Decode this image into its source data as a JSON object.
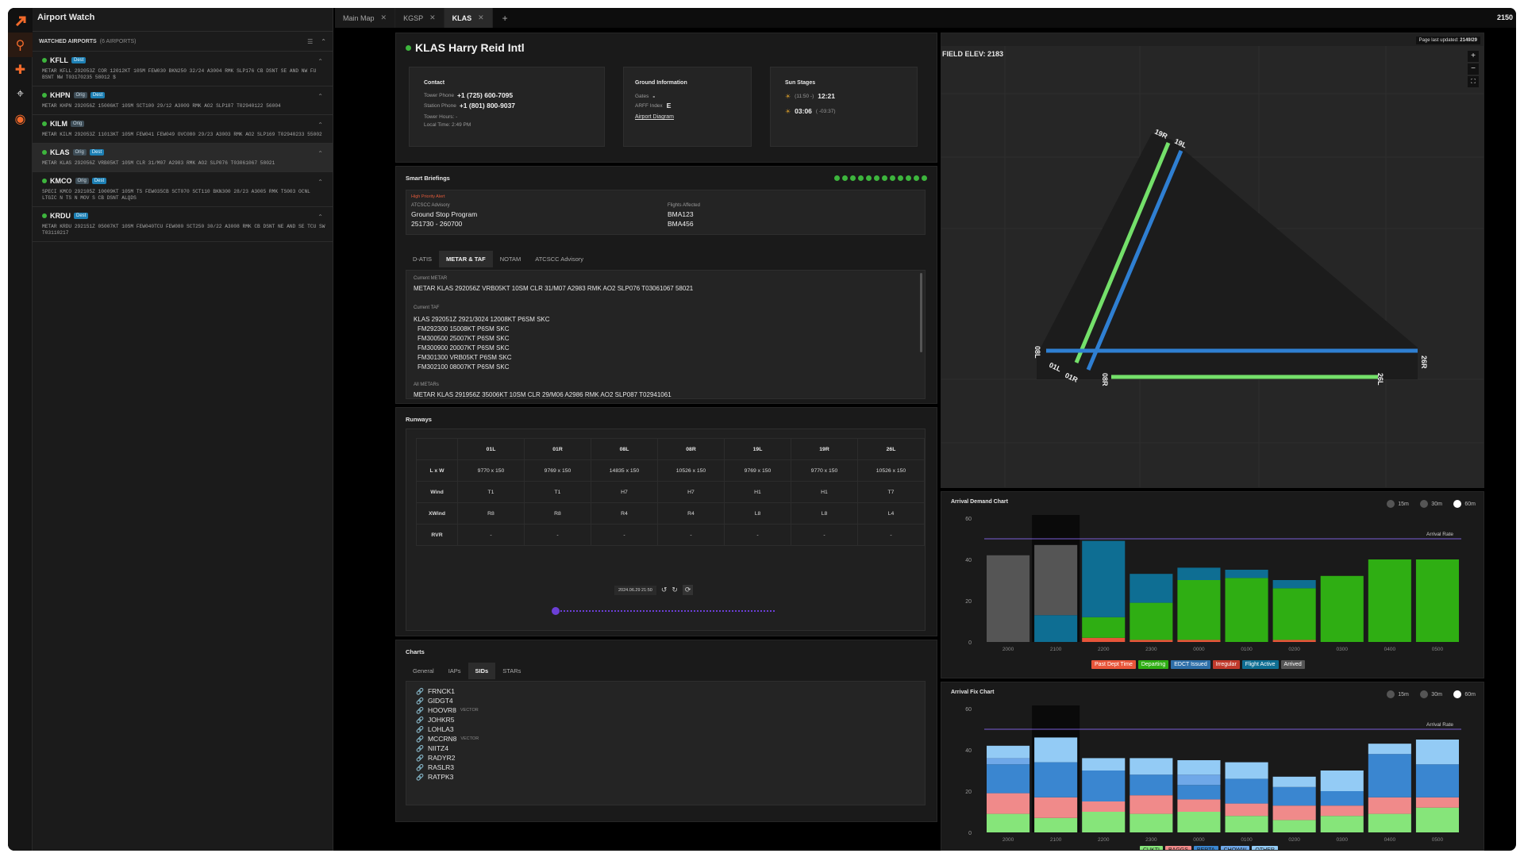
{
  "app": {
    "title": "Airport Watch",
    "clock": "2150"
  },
  "sidebar": {
    "header": "WATCHED AIRPORTS",
    "count": "(6 AIRPORTS)",
    "airports": [
      {
        "code": "KFLL",
        "tags": [
          "Dest"
        ],
        "metar": "METAR KFLL 292053Z COR 12012KT 10SM FEW030 BKN250 32/24 A3004 RMK SLP176 CB DSNT SE AND NW FU BSNT NW T03170235 58012 $"
      },
      {
        "code": "KHPN",
        "tags": [
          "Orig",
          "Dest"
        ],
        "metar": "METAR KHPN 292056Z 15006KT 10SM SCT100 29/12 A3009 RMK AO2 SLP187 T02940122 56004"
      },
      {
        "code": "KILM",
        "tags": [
          "Orig"
        ],
        "metar": "METAR KILM 292053Z 11013KT 10SM FEW041 FEW049 OVC080 29/23 A3003 RMK AO2 SLP169 T02940233 55002"
      },
      {
        "code": "KLAS",
        "tags": [
          "Orig",
          "Dest"
        ],
        "metar": "METAR KLAS 292056Z VRB05KT 10SM CLR 31/M07 A2983 RMK AO2 SLP076 T03061067 58021"
      },
      {
        "code": "KMCO",
        "tags": [
          "Orig",
          "Dest"
        ],
        "metar": "SPECI KMCO 292105Z 10009KT 10SM TS FEW035CB SCT070 SCT110 BKN300 28/23 A3005 RMK TS003 OCNL LTGIC N TS N MOV S CB DSNT ALQDS"
      },
      {
        "code": "KRDU",
        "tags": [
          "Dest"
        ],
        "metar": "METAR KRDU 292151Z 05007KT 10SM FEW040TCU FEW080 SCT250 30/22 A3008 RMK CB DSNT NE AND SE TCU SW T03110217"
      }
    ]
  },
  "tabs": [
    "Main Map",
    "KGSP",
    "KLAS"
  ],
  "airport": {
    "name": "KLAS Harry Reid Intl",
    "contact": {
      "title": "Contact",
      "tower_label": "Tower Phone",
      "tower": "+1 (725) 600-7095",
      "station_label": "Station Phone",
      "station": "+1 (801) 800-9037",
      "hours": "Tower Hours: -",
      "local": "Local Time: 2:49 PM"
    },
    "ground": {
      "title": "Ground Information",
      "gates_label": "Gates",
      "gates": "-",
      "arff_label": "ARFF Index",
      "arff": "E",
      "diagram": "Airport Diagram"
    },
    "sun": {
      "title": "Sun Stages",
      "rise_rel": "(11:50 -)",
      "rise": "12:21",
      "set": "03:06",
      "set_rel": "( -03:37)"
    }
  },
  "briefings": {
    "title": "Smart Briefings",
    "alert": "High Priority Alert",
    "advisory_label": "ATCSCC Advisory",
    "advisory": "Ground Stop Program",
    "advisory_time": "251730 - 260700",
    "flights_label": "Flights Affected",
    "flights": [
      "BMA123",
      "BMA456"
    ],
    "tabs": [
      "D-ATIS",
      "METAR & TAF",
      "NOTAM",
      "ATCSCC Advisory"
    ],
    "current_metar_label": "Current METAR",
    "current_metar": "METAR KLAS 292056Z VRB05KT 10SM CLR 31/M07 A2983 RMK AO2 SLP076 T03061067 58021",
    "taf_label": "Current TAF",
    "taf": [
      "KLAS 292051Z 2921/3024 12008KT P6SM SKC",
      "FM292300 15008KT P6SM SKC",
      "FM300500 25007KT P6SM SKC",
      "FM300900 20007KT P6SM SKC",
      "FM301300 VRB05KT P6SM SKC",
      "FM302100 08007KT P6SM SKC"
    ],
    "all_label": "All METARs",
    "all": "METAR KLAS 291956Z 35006KT 10SM CLR 29/M06 A2986 RMK AO2 SLP087 T02941061"
  },
  "runways": {
    "title": "Runways",
    "cols": [
      "01L",
      "01R",
      "08L",
      "08R",
      "19L",
      "19R",
      "26L"
    ],
    "rows": [
      {
        "h": "L x W",
        "c": [
          "9770 x 150",
          "9769 x 150",
          "14835 x 150",
          "10526 x 150",
          "9769 x 150",
          "9770 x 150",
          "10526 x 150"
        ]
      },
      {
        "h": "Wind",
        "c": [
          "T1",
          "T1",
          "H7",
          "H7",
          "H1",
          "H1",
          "T7"
        ]
      },
      {
        "h": "XWind",
        "c": [
          "R8",
          "R8",
          "R4",
          "R4",
          "L8",
          "L8",
          "L4"
        ]
      },
      {
        "h": "RVR",
        "c": [
          "-",
          "-",
          "-",
          "-",
          "-",
          "-",
          "-"
        ]
      }
    ],
    "time": "2024.06.29 21:50"
  },
  "charts": {
    "title": "Charts",
    "tabs": [
      "General",
      "IAPs",
      "SIDs",
      "STARs"
    ],
    "sids": [
      {
        "n": "FRNCK1",
        "v": ""
      },
      {
        "n": "GIDGT4",
        "v": ""
      },
      {
        "n": "HOOVR8",
        "v": "VECTOR"
      },
      {
        "n": "JOHKR5",
        "v": ""
      },
      {
        "n": "LOHLA3",
        "v": ""
      },
      {
        "n": "MCCRN8",
        "v": "VECTOR"
      },
      {
        "n": "NIITZ4",
        "v": ""
      },
      {
        "n": "RADYR2",
        "v": ""
      },
      {
        "n": "RASLR3",
        "v": ""
      },
      {
        "n": "RATPK3",
        "v": ""
      }
    ]
  },
  "map": {
    "updated_label": "Page last updated:",
    "updated": "2149/29",
    "field_elev": "FIELD ELEV: 2183",
    "rwy_labels": [
      "19R",
      "19L",
      "08L",
      "01L",
      "01R",
      "08R",
      "26R",
      "26L"
    ]
  },
  "radio": [
    "15m",
    "30m",
    "60m"
  ],
  "chart_data": [
    {
      "type": "bar",
      "title": "Arrival Demand Chart",
      "categories": [
        "2000",
        "2100",
        "2200",
        "2300",
        "0000",
        "0100",
        "0200",
        "0300",
        "0400",
        "0500"
      ],
      "ylim": [
        0,
        60
      ],
      "arrival_rate": 50,
      "arrival_rate_label": "Arrival Rate",
      "series": [
        {
          "name": "Past Dept Time",
          "color": "#e8553a",
          "values": [
            0,
            0,
            2,
            1,
            1,
            0,
            1,
            0,
            0,
            0
          ]
        },
        {
          "name": "Departing",
          "color": "#2fae13",
          "values": [
            0,
            0,
            10,
            18,
            29,
            31,
            25,
            32,
            40,
            40
          ]
        },
        {
          "name": "EDCT Issued",
          "color": "#2d6ea8",
          "values": [
            0,
            0,
            0,
            0,
            0,
            0,
            0,
            0,
            0,
            0
          ]
        },
        {
          "name": "Irregular",
          "color": "#c0392b",
          "values": [
            0,
            0,
            0,
            0,
            0,
            0,
            0,
            0,
            0,
            0
          ]
        },
        {
          "name": "Flight Active",
          "color": "#0e6e93",
          "values": [
            0,
            13,
            37,
            14,
            6,
            4,
            4,
            0,
            0,
            0
          ]
        },
        {
          "name": "Arrived",
          "color": "#555555",
          "values": [
            42,
            34,
            0,
            0,
            0,
            0,
            0,
            0,
            0,
            0
          ]
        }
      ]
    },
    {
      "type": "bar",
      "title": "Arrival Fix Chart",
      "categories": [
        "2000",
        "2100",
        "2200",
        "2300",
        "0000",
        "0100",
        "0200",
        "0300",
        "0400",
        "0500"
      ],
      "ylim": [
        0,
        60
      ],
      "arrival_rate": 50,
      "arrival_rate_label": "Arrival Rate",
      "series": [
        {
          "name": "CUKTI",
          "color": "#86e57a",
          "values": [
            9,
            7,
            10,
            9,
            10,
            8,
            6,
            8,
            9,
            12
          ]
        },
        {
          "name": "BAGGS",
          "color": "#f08a8a",
          "values": [
            10,
            10,
            5,
            9,
            6,
            6,
            7,
            5,
            8,
            5
          ]
        },
        {
          "name": "BERTA",
          "color": "#3a86d0",
          "values": [
            14,
            17,
            15,
            10,
            7,
            12,
            9,
            7,
            21,
            16
          ]
        },
        {
          "name": "CHOWW",
          "color": "#6fa8e8",
          "values": [
            3,
            0,
            0,
            0,
            5,
            0,
            0,
            0,
            0,
            0
          ]
        },
        {
          "name": "OTHER",
          "color": "#93cbf5",
          "values": [
            6,
            12,
            6,
            8,
            7,
            8,
            5,
            10,
            5,
            12
          ]
        }
      ]
    }
  ],
  "colors": {
    "accent": "#f26a2b",
    "status_green": "#3db53d",
    "dest_tag": "#1d7fb3"
  }
}
